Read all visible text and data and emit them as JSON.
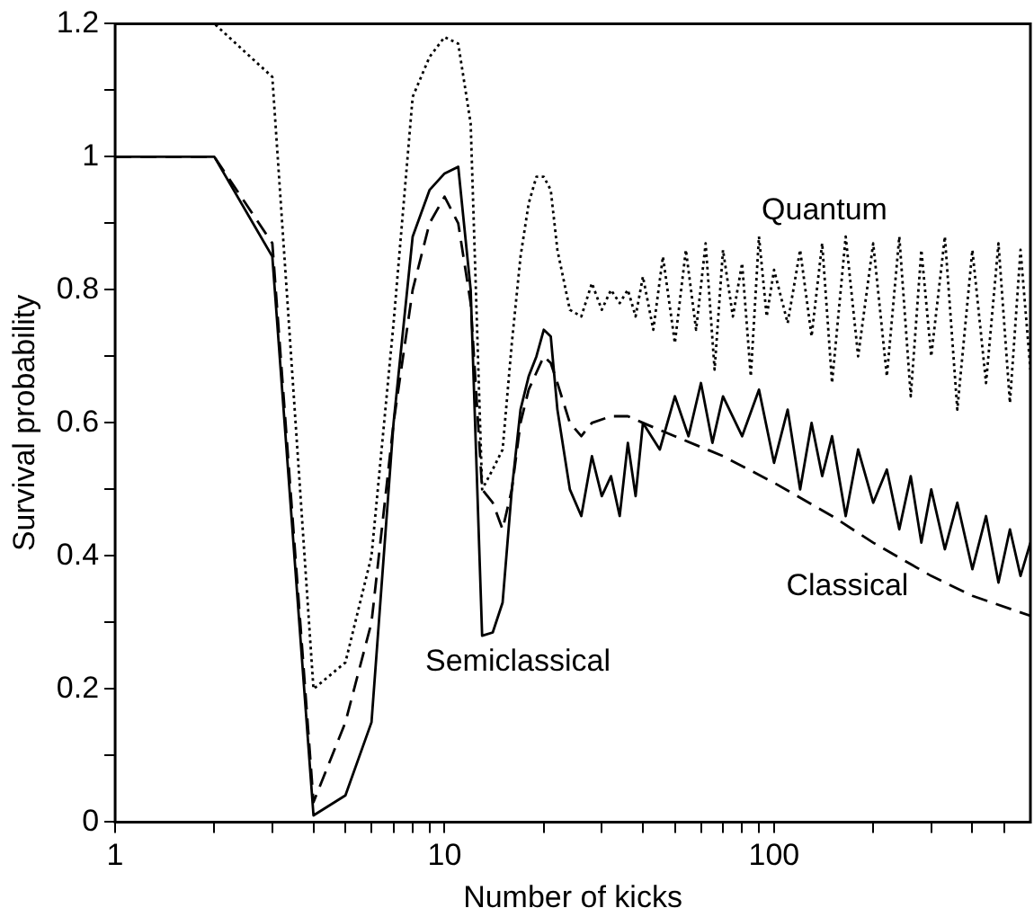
{
  "chart_data": {
    "type": "line",
    "xlabel": "Number of kicks",
    "ylabel": "Survival probability",
    "log": "x",
    "grid": false,
    "legend": false,
    "marker": "none",
    "xlim": [
      1,
      600
    ],
    "ylim": [
      0,
      1.2
    ],
    "xticks": [
      1,
      {
        "value": 2,
        "label": null
      },
      {
        "value": 3,
        "label": null
      },
      {
        "value": 4,
        "label": null
      },
      {
        "value": 5,
        "label": null
      },
      {
        "value": 6,
        "label": null
      },
      {
        "value": 7,
        "label": null
      },
      {
        "value": 8,
        "label": null
      },
      {
        "value": 9,
        "label": null
      },
      10,
      {
        "value": 20,
        "label": null
      },
      {
        "value": 30,
        "label": null
      },
      {
        "value": 40,
        "label": null
      },
      {
        "value": 50,
        "label": null
      },
      {
        "value": 60,
        "label": null
      },
      {
        "value": 70,
        "label": null
      },
      {
        "value": 80,
        "label": null
      },
      {
        "value": 90,
        "label": null
      },
      100,
      {
        "value": 200,
        "label": null
      },
      {
        "value": 300,
        "label": null
      },
      {
        "value": 400,
        "label": null
      },
      {
        "value": 500,
        "label": null
      }
    ],
    "yticks": [
      0,
      {
        "value": 0.1,
        "label": null
      },
      0.2,
      {
        "value": 0.3,
        "label": null
      },
      0.4,
      {
        "value": 0.5,
        "label": null
      },
      0.6,
      {
        "value": 0.7,
        "label": null
      },
      0.8,
      {
        "value": 0.9,
        "label": null
      },
      1,
      {
        "value": 1.1,
        "label": null
      },
      1.2
    ],
    "series": [
      {
        "name": "Quantum",
        "color": "#000000",
        "line_style": "dotted",
        "x": [
          1,
          2,
          3,
          4,
          5,
          6,
          7,
          8,
          9,
          10,
          11,
          12,
          13,
          14,
          15,
          16,
          17,
          18,
          19,
          20,
          21,
          22,
          24,
          26,
          28,
          30,
          32,
          34,
          36,
          38,
          40,
          43,
          46,
          50,
          54,
          58,
          62,
          66,
          70,
          75,
          80,
          85,
          90,
          95,
          100,
          110,
          120,
          130,
          140,
          150,
          165,
          180,
          200,
          220,
          240,
          260,
          280,
          300,
          330,
          360,
          400,
          440,
          480,
          520,
          560,
          600
        ],
        "values": [
          1.2,
          1.2,
          1.12,
          0.2,
          0.24,
          0.4,
          0.75,
          1.09,
          1.15,
          1.18,
          1.17,
          1.05,
          0.5,
          0.53,
          0.56,
          0.72,
          0.85,
          0.93,
          0.97,
          0.97,
          0.95,
          0.86,
          0.77,
          0.76,
          0.81,
          0.77,
          0.8,
          0.78,
          0.8,
          0.76,
          0.82,
          0.74,
          0.85,
          0.72,
          0.86,
          0.74,
          0.87,
          0.68,
          0.86,
          0.76,
          0.84,
          0.67,
          0.88,
          0.76,
          0.83,
          0.75,
          0.86,
          0.73,
          0.87,
          0.66,
          0.88,
          0.7,
          0.87,
          0.67,
          0.88,
          0.64,
          0.86,
          0.7,
          0.88,
          0.62,
          0.86,
          0.66,
          0.87,
          0.63,
          0.86,
          0.68
        ]
      },
      {
        "name": "Semiclassical",
        "color": "#000000",
        "line_style": "solid",
        "x": [
          1,
          2,
          3,
          4,
          5,
          6,
          7,
          8,
          9,
          10,
          11,
          12,
          13,
          14,
          15,
          16,
          17,
          18,
          19,
          20,
          21,
          22,
          24,
          26,
          28,
          30,
          32,
          34,
          36,
          38,
          40,
          45,
          50,
          55,
          60,
          65,
          70,
          80,
          90,
          100,
          110,
          120,
          130,
          140,
          150,
          165,
          180,
          200,
          220,
          240,
          260,
          280,
          300,
          330,
          360,
          400,
          440,
          480,
          520,
          560,
          600
        ],
        "values": [
          1,
          1,
          0.85,
          0.01,
          0.04,
          0.15,
          0.6,
          0.88,
          0.95,
          0.975,
          0.985,
          0.8,
          0.28,
          0.285,
          0.33,
          0.5,
          0.62,
          0.67,
          0.7,
          0.74,
          0.73,
          0.62,
          0.5,
          0.46,
          0.55,
          0.49,
          0.52,
          0.46,
          0.57,
          0.49,
          0.6,
          0.56,
          0.64,
          0.58,
          0.66,
          0.57,
          0.64,
          0.58,
          0.65,
          0.54,
          0.62,
          0.5,
          0.6,
          0.52,
          0.58,
          0.46,
          0.56,
          0.48,
          0.53,
          0.44,
          0.52,
          0.42,
          0.5,
          0.41,
          0.48,
          0.38,
          0.46,
          0.36,
          0.44,
          0.37,
          0.42
        ]
      },
      {
        "name": "Classical",
        "color": "#000000",
        "line_style": "dashed",
        "x": [
          1,
          2,
          3,
          4,
          5,
          6,
          7,
          8,
          9,
          10,
          11,
          12,
          13,
          14,
          15,
          16,
          17,
          18,
          20,
          21,
          22,
          24,
          26,
          28,
          32,
          36,
          40,
          50,
          70,
          100,
          150,
          200,
          300,
          400,
          600
        ],
        "values": [
          1,
          1,
          0.87,
          0.03,
          0.15,
          0.3,
          0.6,
          0.8,
          0.9,
          0.94,
          0.9,
          0.78,
          0.5,
          0.48,
          0.44,
          0.5,
          0.6,
          0.65,
          0.7,
          0.69,
          0.66,
          0.6,
          0.58,
          0.6,
          0.61,
          0.61,
          0.6,
          0.58,
          0.55,
          0.51,
          0.46,
          0.42,
          0.37,
          0.34,
          0.31
        ]
      }
    ]
  }
}
